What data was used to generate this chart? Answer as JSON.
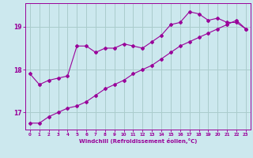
{
  "xlabel": "Windchill (Refroidissement éolien,°C)",
  "bg_color": "#cce8ee",
  "grid_color": "#aacccc",
  "line_color": "#990099",
  "x_data": [
    0,
    1,
    2,
    3,
    4,
    5,
    6,
    7,
    8,
    9,
    10,
    11,
    12,
    13,
    14,
    15,
    16,
    17,
    18,
    19,
    20,
    21,
    22,
    23
  ],
  "y_curve": [
    17.9,
    17.65,
    17.75,
    17.8,
    17.85,
    18.55,
    18.55,
    18.4,
    18.5,
    18.5,
    18.6,
    18.55,
    18.5,
    18.65,
    18.8,
    19.05,
    19.1,
    19.35,
    19.3,
    19.15,
    19.2,
    19.1,
    19.1,
    18.95
  ],
  "y_line": [
    16.75,
    16.75,
    16.9,
    17.0,
    17.1,
    17.15,
    17.25,
    17.4,
    17.55,
    17.65,
    17.75,
    17.9,
    18.0,
    18.1,
    18.25,
    18.4,
    18.55,
    18.65,
    18.75,
    18.85,
    18.95,
    19.05,
    19.15,
    18.95
  ],
  "ylim": [
    16.6,
    19.55
  ],
  "yticks": [
    17,
    18,
    19
  ],
  "xlim": [
    -0.5,
    23.5
  ],
  "xticks": [
    0,
    1,
    2,
    3,
    4,
    5,
    6,
    7,
    8,
    9,
    10,
    11,
    12,
    13,
    14,
    15,
    16,
    17,
    18,
    19,
    20,
    21,
    22,
    23
  ]
}
